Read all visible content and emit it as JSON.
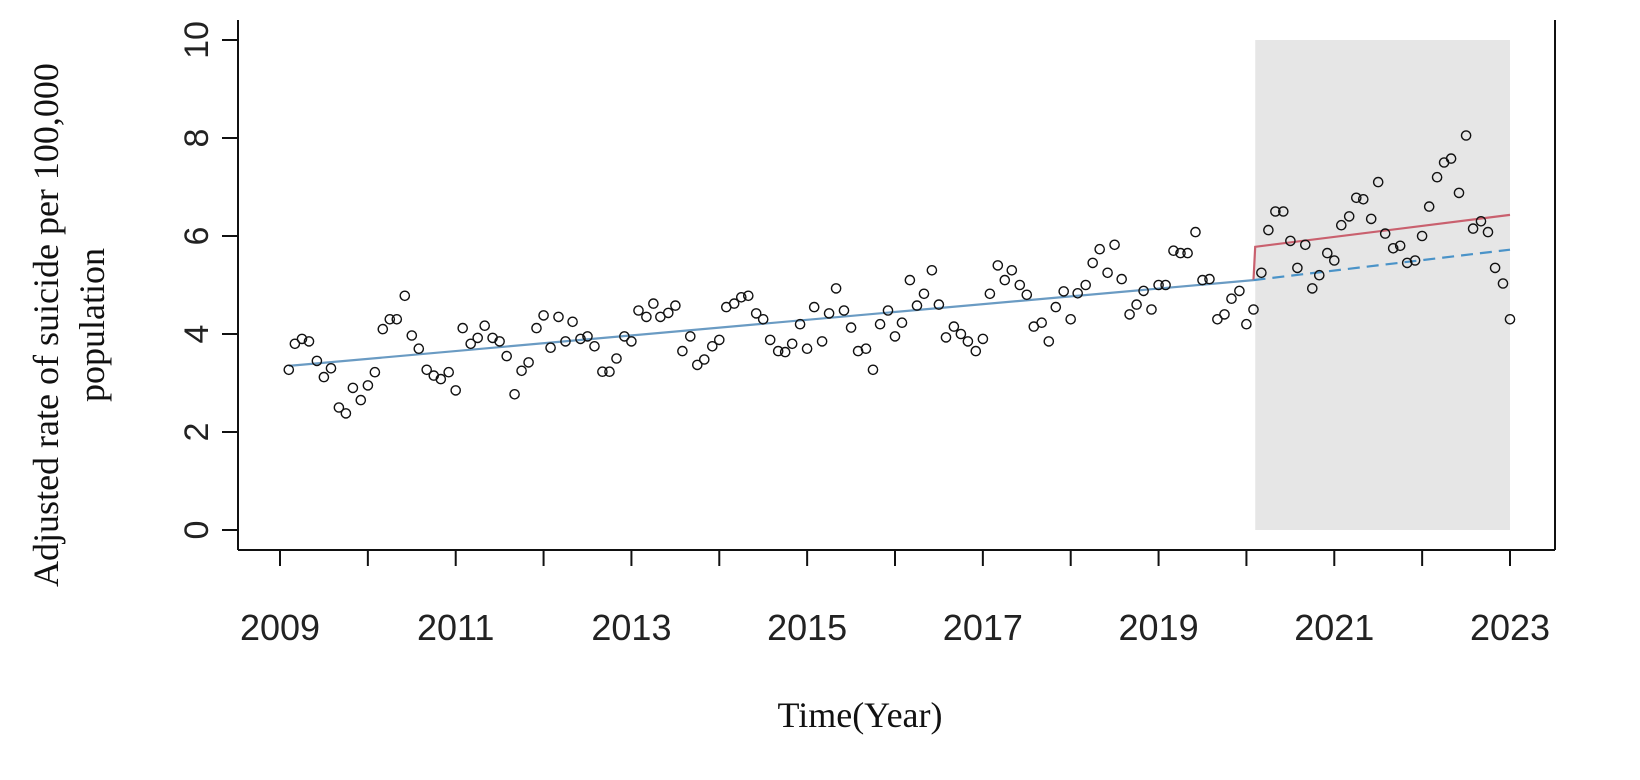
{
  "chart_data": {
    "type": "scatter",
    "title": "",
    "xlabel": "Time(Year)",
    "ylabel_lines": [
      "Adjusted rate of suicide per 100,000",
      "population"
    ],
    "xlim": [
      2009,
      2023
    ],
    "ylim": [
      0,
      10
    ],
    "x_ticks": [
      2009,
      2010,
      2011,
      2012,
      2013,
      2014,
      2015,
      2016,
      2017,
      2018,
      2019,
      2020,
      2021,
      2022,
      2023
    ],
    "x_tick_labels": [
      "2009",
      "",
      "2011",
      "",
      "2013",
      "",
      "2015",
      "",
      "2017",
      "",
      "2019",
      "",
      "2021",
      "",
      "2023"
    ],
    "y_ticks": [
      0,
      2,
      4,
      6,
      8,
      10
    ],
    "y_tick_labels": [
      "0",
      "2",
      "4",
      "6",
      "8",
      "10"
    ],
    "shaded_region": {
      "x_start": 2020.1,
      "x_end": 2023.0,
      "y_start": 0,
      "y_end": 10,
      "color": "#e6e6e6"
    },
    "colors": {
      "points": "#111111",
      "fit_pre": "#6a9bc3",
      "fit_post": "#c9606e",
      "counterfactual": "#4a93c8"
    },
    "series": [
      {
        "kind": "points",
        "x": [
          2009.1,
          2009.17,
          2009.25,
          2009.33,
          2009.42,
          2009.5,
          2009.58,
          2009.67,
          2009.75,
          2009.83,
          2009.92,
          2010.0,
          2010.08,
          2010.17,
          2010.25,
          2010.33,
          2010.42,
          2010.5,
          2010.58,
          2010.67,
          2010.75,
          2010.83,
          2010.92,
          2011.0,
          2011.08,
          2011.17,
          2011.25,
          2011.33,
          2011.42,
          2011.5,
          2011.58,
          2011.67,
          2011.75,
          2011.83,
          2011.92,
          2012.0,
          2012.08,
          2012.17,
          2012.25,
          2012.33,
          2012.42,
          2012.5,
          2012.58,
          2012.67,
          2012.75,
          2012.83,
          2012.92,
          2013.0,
          2013.08,
          2013.17,
          2013.25,
          2013.33,
          2013.42,
          2013.5,
          2013.58,
          2013.67,
          2013.75,
          2013.83,
          2013.92,
          2014.0,
          2014.08,
          2014.17,
          2014.25,
          2014.33,
          2014.42,
          2014.5,
          2014.58,
          2014.67,
          2014.75,
          2014.83,
          2014.92,
          2015.0,
          2015.08,
          2015.17,
          2015.25,
          2015.33,
          2015.42,
          2015.5,
          2015.58,
          2015.67,
          2015.75,
          2015.83,
          2015.92,
          2016.0,
          2016.08,
          2016.17,
          2016.25,
          2016.33,
          2016.42,
          2016.5,
          2016.58,
          2016.67,
          2016.75,
          2016.83,
          2016.92,
          2017.0,
          2017.08,
          2017.17,
          2017.25,
          2017.33,
          2017.42,
          2017.5,
          2017.58,
          2017.67,
          2017.75,
          2017.83,
          2017.92,
          2018.0,
          2018.08,
          2018.17,
          2018.25,
          2018.33,
          2018.42,
          2018.5,
          2018.58,
          2018.67,
          2018.75,
          2018.83,
          2018.92,
          2019.0,
          2019.08,
          2019.17,
          2019.25,
          2019.33,
          2019.42,
          2019.5,
          2019.58,
          2019.67,
          2019.75,
          2019.83,
          2019.92,
          2020.0,
          2020.08,
          2020.17,
          2020.25,
          2020.33,
          2020.42,
          2020.5,
          2020.58,
          2020.67,
          2020.75,
          2020.83,
          2020.92,
          2021.0,
          2021.08,
          2021.17,
          2021.25,
          2021.33,
          2021.42,
          2021.5,
          2021.58,
          2021.67,
          2021.75,
          2021.83,
          2021.92,
          2022.0,
          2022.08,
          2022.17,
          2022.25,
          2022.33,
          2022.42,
          2022.5,
          2022.58,
          2022.67,
          2022.75,
          2022.83,
          2022.92,
          2023.0
        ],
        "y": [
          3.27,
          3.8,
          3.9,
          3.85,
          3.45,
          3.12,
          3.3,
          2.5,
          2.38,
          2.9,
          2.65,
          2.95,
          3.22,
          4.1,
          4.3,
          4.3,
          4.78,
          3.97,
          3.7,
          3.27,
          3.15,
          3.08,
          3.22,
          2.85,
          4.12,
          3.8,
          3.92,
          4.17,
          3.92,
          3.85,
          3.55,
          2.77,
          3.25,
          3.42,
          4.12,
          4.38,
          3.72,
          4.35,
          3.85,
          4.25,
          3.9,
          3.95,
          3.75,
          3.23,
          3.23,
          3.5,
          3.95,
          3.85,
          4.48,
          4.35,
          4.62,
          4.35,
          4.43,
          4.58,
          3.65,
          3.95,
          3.37,
          3.48,
          3.75,
          3.88,
          4.55,
          4.62,
          4.75,
          4.78,
          4.42,
          4.3,
          3.88,
          3.65,
          3.63,
          3.8,
          4.2,
          3.7,
          4.55,
          3.85,
          4.42,
          4.93,
          4.48,
          4.13,
          3.65,
          3.7,
          3.27,
          4.2,
          4.48,
          3.95,
          4.23,
          5.1,
          4.58,
          4.82,
          5.3,
          4.6,
          3.93,
          4.15,
          4.0,
          3.85,
          3.65,
          3.9,
          4.82,
          5.4,
          5.1,
          5.3,
          5.0,
          4.8,
          4.15,
          4.23,
          3.85,
          4.55,
          4.87,
          4.3,
          4.83,
          5.0,
          5.45,
          5.73,
          5.25,
          5.82,
          5.12,
          4.4,
          4.6,
          4.88,
          4.5,
          5.0,
          5.0,
          5.7,
          5.65,
          5.65,
          6.08,
          5.1,
          5.12,
          4.3,
          4.4,
          4.72,
          4.88,
          4.2,
          4.5,
          5.25,
          6.12,
          6.5,
          6.5,
          5.9,
          5.35,
          5.82,
          4.93,
          5.2,
          5.65,
          5.5,
          6.22,
          6.4,
          6.78,
          6.75,
          6.35,
          7.1,
          6.05,
          5.75,
          5.8,
          5.45,
          5.5,
          6.0,
          6.6,
          7.2,
          7.5,
          7.58,
          6.88,
          8.05,
          6.15,
          6.3,
          6.08,
          5.35,
          5.03,
          4.3
        ]
      },
      {
        "kind": "line",
        "name": "",
        "style": "solid",
        "x": [
          2009.1,
          2020.08
        ],
        "y": [
          3.35,
          5.1
        ]
      },
      {
        "kind": "line",
        "name": "",
        "style": "solid",
        "x": [
          2020.08,
          2020.1,
          2023.0
        ],
        "y": [
          5.1,
          5.78,
          6.43
        ]
      },
      {
        "kind": "line",
        "name": "",
        "style": "dashed",
        "x": [
          2020.08,
          2023.0
        ],
        "y": [
          5.1,
          5.72
        ]
      }
    ]
  }
}
